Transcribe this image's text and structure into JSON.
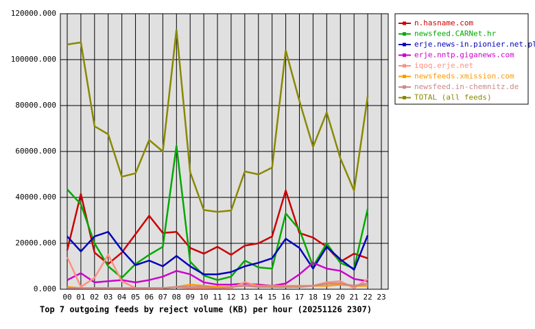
{
  "chart_data": {
    "type": "line",
    "title": "Top 7 outgoing feeds by reject volume (KB) per hour (20251126 2307)",
    "categories": [
      "00",
      "01",
      "02",
      "03",
      "04",
      "05",
      "06",
      "07",
      "08",
      "09",
      "10",
      "11",
      "12",
      "13",
      "14",
      "15",
      "16",
      "17",
      "18",
      "19",
      "20",
      "21",
      "22",
      "23"
    ],
    "ylim": [
      0,
      120000
    ],
    "yticks": [
      {
        "value": 0,
        "label": "0.000"
      },
      {
        "value": 20000,
        "label": "20000.000"
      },
      {
        "value": 40000,
        "label": "40000.000"
      },
      {
        "value": 60000,
        "label": "60000.000"
      },
      {
        "value": 80000,
        "label": "80000.000"
      },
      {
        "value": 100000,
        "label": "100000.000"
      },
      {
        "value": 120000,
        "label": "120000.000"
      }
    ],
    "grid": true,
    "legend": "right",
    "series": [
      {
        "name": "n.hasname.com",
        "color": "#cc0000",
        "values": [
          17000,
          41500,
          16000,
          11000,
          16000,
          24000,
          32000,
          24500,
          25000,
          18000,
          15500,
          18500,
          15000,
          19000,
          20000,
          23000,
          43000,
          24500,
          22500,
          18500,
          12000,
          15500,
          13500,
          null
        ]
      },
      {
        "name": "newsfeed.CARNet.hr",
        "color": "#00aa00",
        "values": [
          43500,
          37000,
          20000,
          10000,
          5000,
          11000,
          15000,
          18500,
          62500,
          12000,
          6000,
          4000,
          5500,
          12500,
          9500,
          9000,
          33000,
          26000,
          10000,
          20000,
          11500,
          9000,
          35000,
          null
        ]
      },
      {
        "name": "erje.news-in.pionier.net.pl",
        "color": "#0000bb",
        "values": [
          23000,
          16500,
          23000,
          25000,
          17000,
          10500,
          12500,
          10000,
          14500,
          10000,
          6500,
          6500,
          7500,
          10000,
          11500,
          13500,
          22000,
          18000,
          9000,
          18500,
          13000,
          8500,
          23500,
          null
        ]
      },
      {
        "name": "erje.nntp.giganews.com",
        "color": "#cc00cc",
        "values": [
          4000,
          7000,
          3000,
          3500,
          4000,
          3000,
          4000,
          5500,
          8000,
          6500,
          3000,
          2000,
          2000,
          2500,
          2000,
          1500,
          2500,
          6500,
          11500,
          9000,
          8000,
          4500,
          3500,
          null
        ]
      },
      {
        "name": "iqoq.erje.net",
        "color": "#ff9080",
        "values": [
          14000,
          1000,
          5000,
          15000,
          3500,
          500,
          500,
          500,
          1000,
          500,
          500,
          500,
          500,
          3000,
          1500,
          1000,
          1000,
          1000,
          1500,
          3000,
          3500,
          500,
          4500,
          null
        ]
      },
      {
        "name": "newsfeeds.xmission.com",
        "color": "#ff9900",
        "values": [
          1000,
          500,
          500,
          500,
          500,
          500,
          500,
          500,
          1000,
          2000,
          1500,
          1000,
          1000,
          1500,
          1500,
          1500,
          1500,
          1500,
          1500,
          1500,
          2000,
          1500,
          1500,
          null
        ]
      },
      {
        "name": "newsfeed.in-chemnitz.de",
        "color": "#cc8888",
        "values": [
          500,
          500,
          500,
          500,
          500,
          500,
          500,
          500,
          1000,
          1000,
          1000,
          500,
          1000,
          1500,
          1000,
          1000,
          1000,
          1000,
          1500,
          2500,
          2500,
          1500,
          2500,
          null
        ]
      },
      {
        "name": "TOTAL (all feeds)",
        "color": "#888800",
        "values": [
          106600,
          107500,
          71000,
          67500,
          49000,
          50500,
          65000,
          60000,
          113000,
          51000,
          34500,
          33700,
          34300,
          51300,
          50000,
          53000,
          104000,
          82000,
          62000,
          77000,
          57000,
          43000,
          84000,
          null
        ]
      }
    ]
  }
}
